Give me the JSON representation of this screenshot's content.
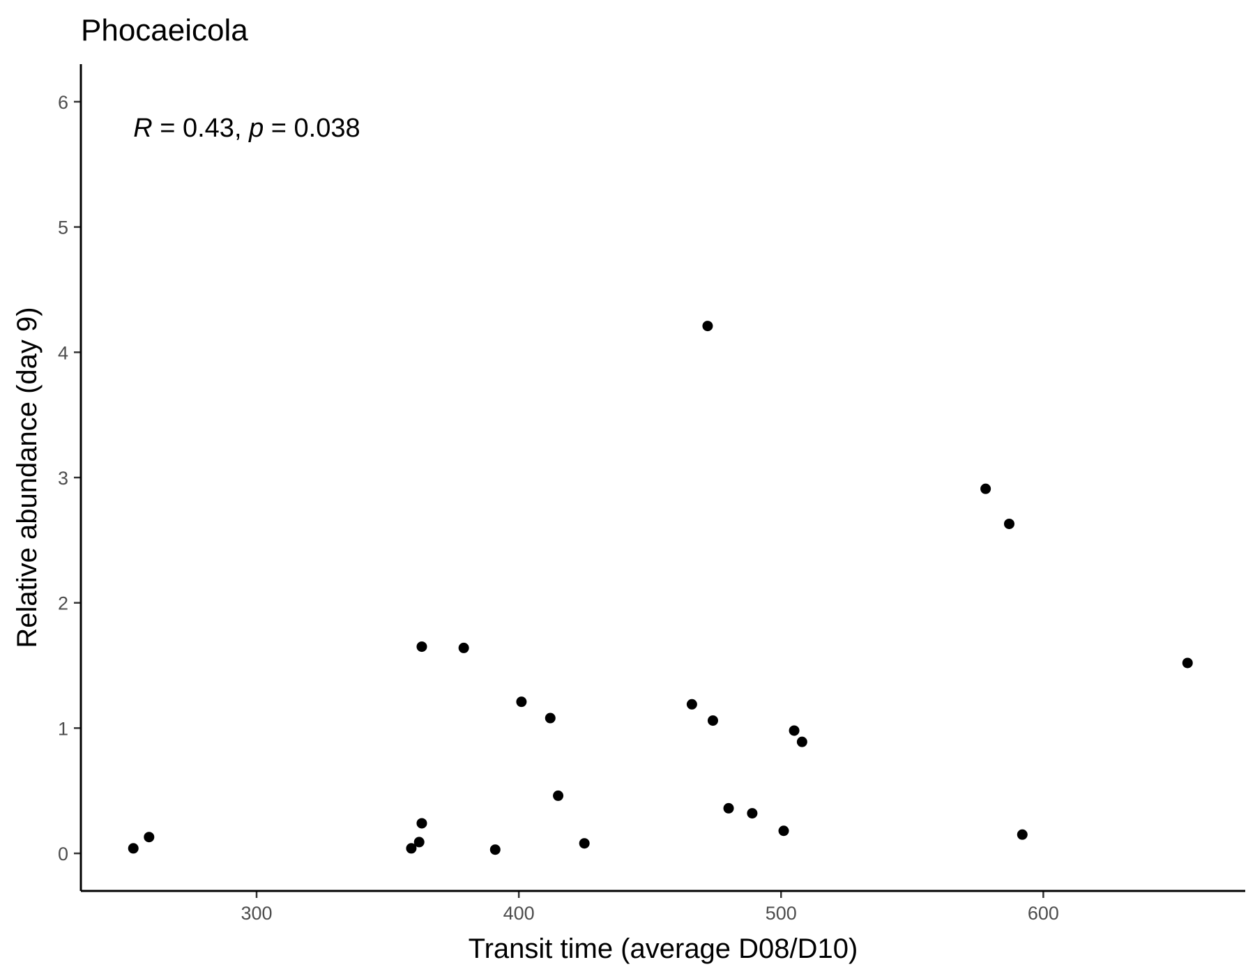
{
  "chart_data": {
    "type": "scatter",
    "title": "Phocaeicola",
    "xlabel": "Transit time (average D08/D10)",
    "ylabel": "Relative abundance (day 9)",
    "xlim": [
      233,
      677
    ],
    "ylim": [
      -0.3,
      6.3
    ],
    "x_ticks": [
      300,
      400,
      500,
      600
    ],
    "y_ticks": [
      0,
      1,
      2,
      3,
      4,
      5,
      6
    ],
    "grid": false,
    "annotation": {
      "R_symbol": "R",
      "R_text": " = 0.43, ",
      "p_symbol": "p",
      "p_text": " = 0.038",
      "x": 253,
      "y": 5.8
    },
    "point_color": "#000000",
    "points": [
      {
        "x": 253,
        "y": 0.04
      },
      {
        "x": 259,
        "y": 0.13
      },
      {
        "x": 359,
        "y": 0.04
      },
      {
        "x": 362,
        "y": 0.09
      },
      {
        "x": 363,
        "y": 0.24
      },
      {
        "x": 363,
        "y": 1.65
      },
      {
        "x": 379,
        "y": 1.64
      },
      {
        "x": 391,
        "y": 0.03
      },
      {
        "x": 401,
        "y": 1.21
      },
      {
        "x": 412,
        "y": 1.08
      },
      {
        "x": 415,
        "y": 0.46
      },
      {
        "x": 425,
        "y": 0.08
      },
      {
        "x": 466,
        "y": 1.19
      },
      {
        "x": 472,
        "y": 4.21
      },
      {
        "x": 474,
        "y": 1.06
      },
      {
        "x": 480,
        "y": 0.36
      },
      {
        "x": 489,
        "y": 0.32
      },
      {
        "x": 501,
        "y": 0.18
      },
      {
        "x": 505,
        "y": 0.98
      },
      {
        "x": 508,
        "y": 0.89
      },
      {
        "x": 578,
        "y": 2.91
      },
      {
        "x": 587,
        "y": 2.63
      },
      {
        "x": 592,
        "y": 0.15
      },
      {
        "x": 655,
        "y": 1.52
      }
    ]
  }
}
